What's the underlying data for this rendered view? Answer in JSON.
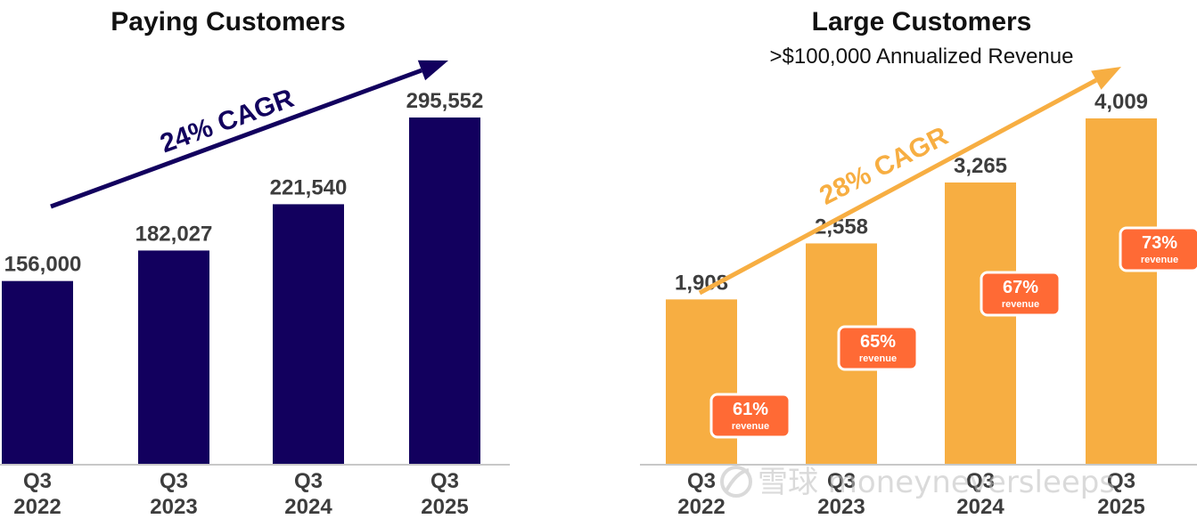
{
  "colors": {
    "left_bar": "#12005e",
    "right_bar": "#f7ae42",
    "badge": "#ff6a35",
    "cagr_left": "#12005e",
    "cagr_right": "#f7ae42",
    "text": "#3d3d3d",
    "baseline": "#c8c8c8"
  },
  "watermark": {
    "text": "雪球 moneyneversleeps",
    "icon": "snowball-logo-icon"
  },
  "chart_data": [
    {
      "type": "bar",
      "title": "Paying Customers",
      "subtitle": "",
      "categories": [
        "Q3\n2022",
        "Q3\n2023",
        "Q3\n2024",
        "Q3\n2025"
      ],
      "values": [
        156000,
        182027,
        221540,
        295552
      ],
      "value_labels": [
        "156,000",
        "182,027",
        "221,540",
        "295,552"
      ],
      "annotation": "24% CAGR",
      "ylim": [
        0,
        300000
      ],
      "grid": false,
      "legend": "none"
    },
    {
      "type": "bar",
      "title": "Large Customers",
      "subtitle": ">$100,000 Annualized Revenue",
      "categories": [
        "Q3\n2022",
        "Q3\n2023",
        "Q3\n2024",
        "Q3\n2025"
      ],
      "values": [
        1908,
        2558,
        3265,
        4009
      ],
      "value_labels": [
        "1,908",
        "2,558",
        "3,265",
        "4,009"
      ],
      "annotation": "28% CAGR",
      "badges": [
        {
          "pct": "61%",
          "label": "revenue"
        },
        {
          "pct": "65%",
          "label": "revenue"
        },
        {
          "pct": "67%",
          "label": "revenue"
        },
        {
          "pct": "73%",
          "label": "revenue"
        }
      ],
      "ylim": [
        0,
        4100
      ],
      "grid": false,
      "legend": "none"
    }
  ]
}
